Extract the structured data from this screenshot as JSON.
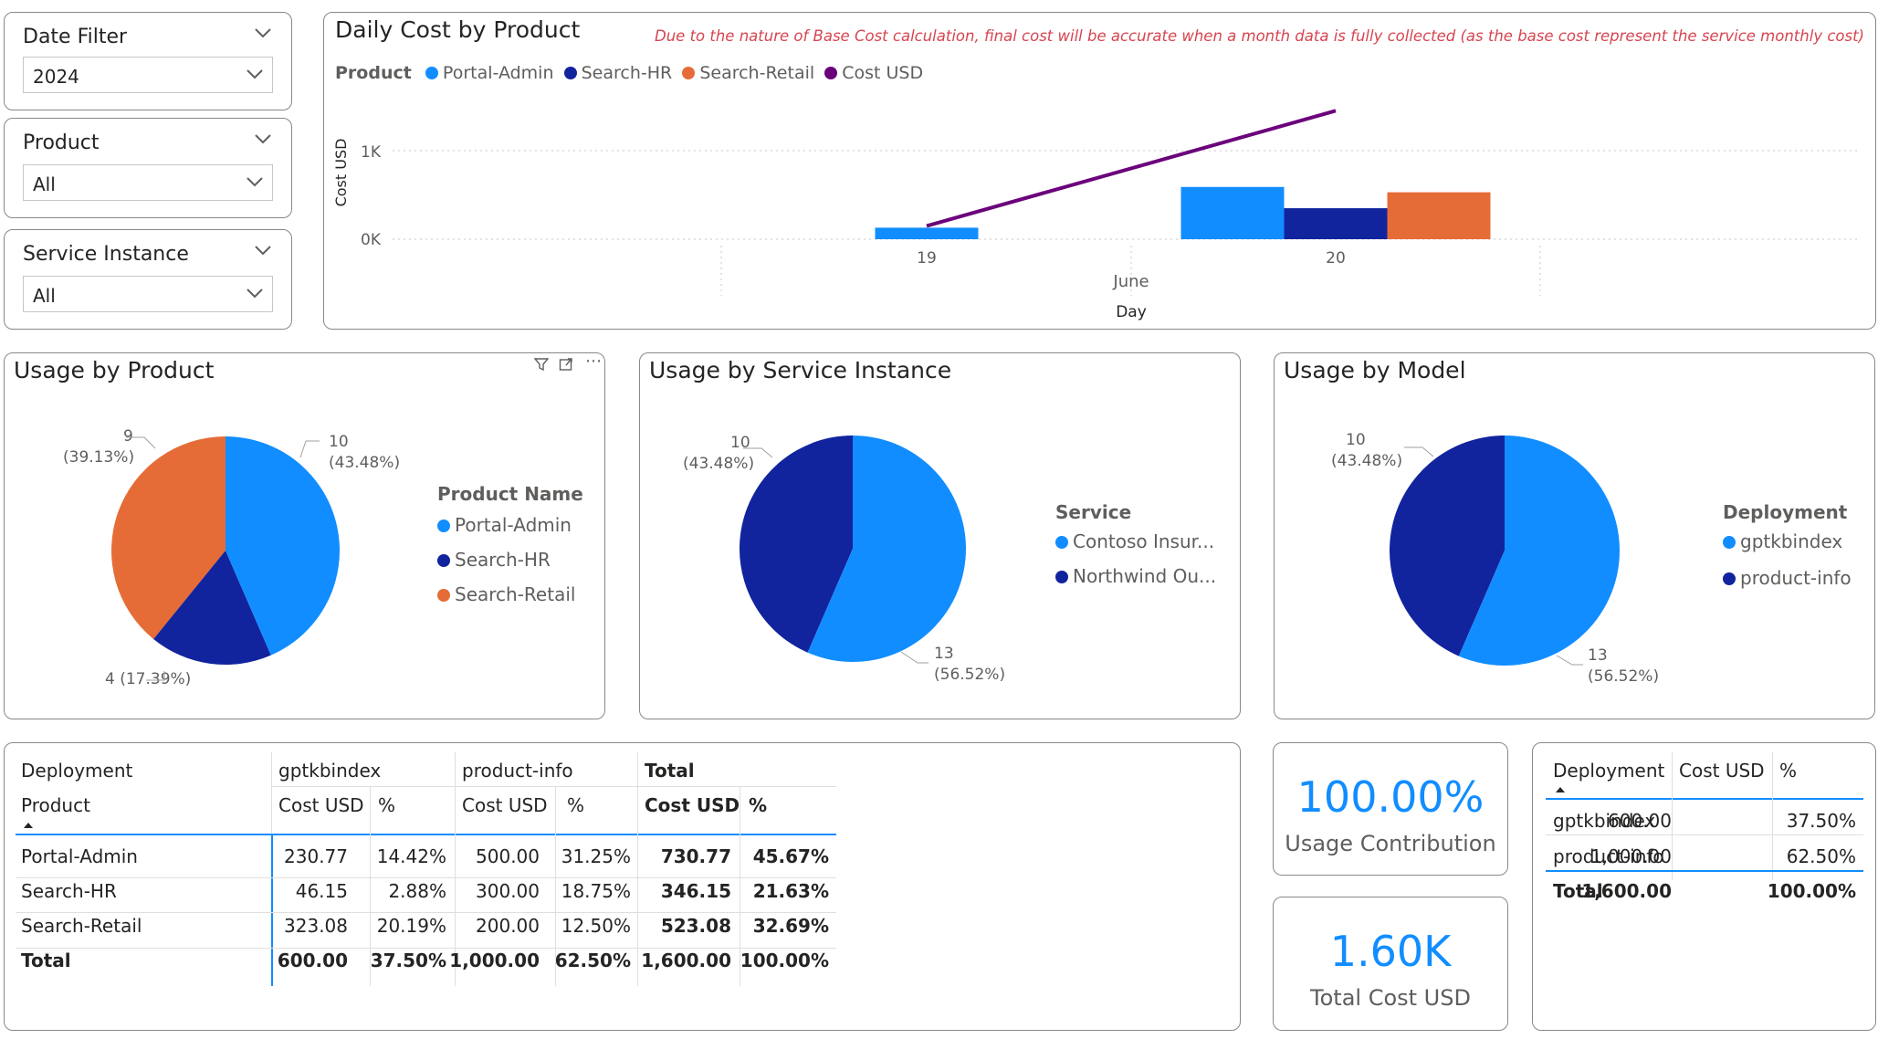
{
  "slicers": [
    {
      "title": "Date Filter",
      "value": "2024"
    },
    {
      "title": "Product",
      "value": "All"
    },
    {
      "title": "Service Instance",
      "value": "All"
    }
  ],
  "daily_cost": {
    "title": "Daily Cost by Product",
    "note": "Due to the nature of Base Cost calculation, final cost will be accurate when a month data is fully collected (as the base cost represent the service monthly cost)",
    "legend_title": "Product",
    "legend": [
      "Portal-Admin",
      "Search-HR",
      "Search-Retail",
      "Cost USD"
    ],
    "ylabel": "Cost USD",
    "xlabel": "Day",
    "month_label": "June",
    "y_ticks": [
      "1K",
      "0K"
    ],
    "x_ticks": [
      "19",
      "20"
    ]
  },
  "usage_product": {
    "title": "Usage by Product",
    "legend_title": "Product Name",
    "legend": [
      "Portal-Admin",
      "Search-HR",
      "Search-Retail"
    ],
    "labels": [
      {
        "value": "10",
        "pct": "(43.48%)"
      },
      {
        "value": "4 (17.39%)",
        "pct": ""
      },
      {
        "value": "9",
        "pct": "(39.13%)"
      }
    ]
  },
  "usage_service": {
    "title": "Usage by Service Instance",
    "legend_title": "Service",
    "legend": [
      "Contoso Insur...",
      "Northwind Ou..."
    ],
    "labels": [
      {
        "value": "13",
        "pct": "(56.52%)"
      },
      {
        "value": "10",
        "pct": "(43.48%)"
      }
    ]
  },
  "usage_model": {
    "title": "Usage by Model",
    "legend_title": "Deployment",
    "legend": [
      "gptkbindex",
      "product-info"
    ],
    "labels": [
      {
        "value": "13",
        "pct": "(56.52%)"
      },
      {
        "value": "10",
        "pct": "(43.48%)"
      }
    ]
  },
  "matrix": {
    "h_deployment": "Deployment",
    "h_product": "Product",
    "col_groups": [
      "gptkbindex",
      "product-info",
      "Total"
    ],
    "sub_cost": "Cost USD",
    "sub_pct": "%",
    "rows": [
      {
        "product": "Portal-Admin",
        "c1": "230.77",
        "p1": "14.42%",
        "c2": "500.00",
        "p2": "31.25%",
        "ct": "730.77",
        "pt": "45.67%"
      },
      {
        "product": "Search-HR",
        "c1": "46.15",
        "p1": "2.88%",
        "c2": "300.00",
        "p2": "18.75%",
        "ct": "346.15",
        "pt": "21.63%"
      },
      {
        "product": "Search-Retail",
        "c1": "323.08",
        "p1": "20.19%",
        "c2": "200.00",
        "p2": "12.50%",
        "ct": "523.08",
        "pt": "32.69%"
      }
    ],
    "total": {
      "product": "Total",
      "c1": "600.00",
      "p1": "37.50%",
      "c2": "1,000.00",
      "p2": "62.50%",
      "ct": "1,600.00",
      "pt": "100.00%"
    }
  },
  "kpi_usage": {
    "value": "100.00%",
    "label": "Usage Contribution"
  },
  "kpi_cost": {
    "value": "1.60K",
    "label": "Total Cost USD"
  },
  "deploy_table": {
    "headers": [
      "Deployment",
      "Cost USD",
      "%"
    ],
    "rows": [
      {
        "d": "gptkbindex",
        "c": "600.00",
        "p": "37.50%"
      },
      {
        "d": "product-info",
        "c": "1,000.00",
        "p": "62.50%"
      }
    ],
    "total": {
      "d": "Total",
      "c": "1,600.00",
      "p": "100.00%"
    }
  },
  "colors": {
    "portal_admin": "#118dff",
    "search_hr": "#12239e",
    "search_retail": "#e66c37",
    "cost_line": "#6b007b",
    "note_red": "#d64550",
    "kpi_blue": "#118dff"
  },
  "chart_data": [
    {
      "type": "bar",
      "title": "Daily Cost by Product",
      "xlabel": "Day",
      "ylabel": "Cost USD",
      "categories": [
        "19",
        "20"
      ],
      "series": [
        {
          "name": "Portal-Admin",
          "values": [
            130,
            590
          ]
        },
        {
          "name": "Search-HR",
          "values": [
            0,
            350
          ]
        },
        {
          "name": "Search-Retail",
          "values": [
            0,
            530
          ]
        },
        {
          "name": "Cost USD",
          "type": "line",
          "values": [
            150,
            1450
          ]
        }
      ],
      "ylim": [
        0,
        1500
      ]
    },
    {
      "type": "pie",
      "title": "Usage by Product",
      "categories": [
        "Portal-Admin",
        "Search-HR",
        "Search-Retail"
      ],
      "values": [
        10,
        4,
        9
      ]
    },
    {
      "type": "pie",
      "title": "Usage by Service Instance",
      "categories": [
        "Contoso Insur...",
        "Northwind Ou..."
      ],
      "values": [
        13,
        10
      ]
    },
    {
      "type": "pie",
      "title": "Usage by Model",
      "categories": [
        "gptkbindex",
        "product-info"
      ],
      "values": [
        13,
        10
      ]
    }
  ]
}
